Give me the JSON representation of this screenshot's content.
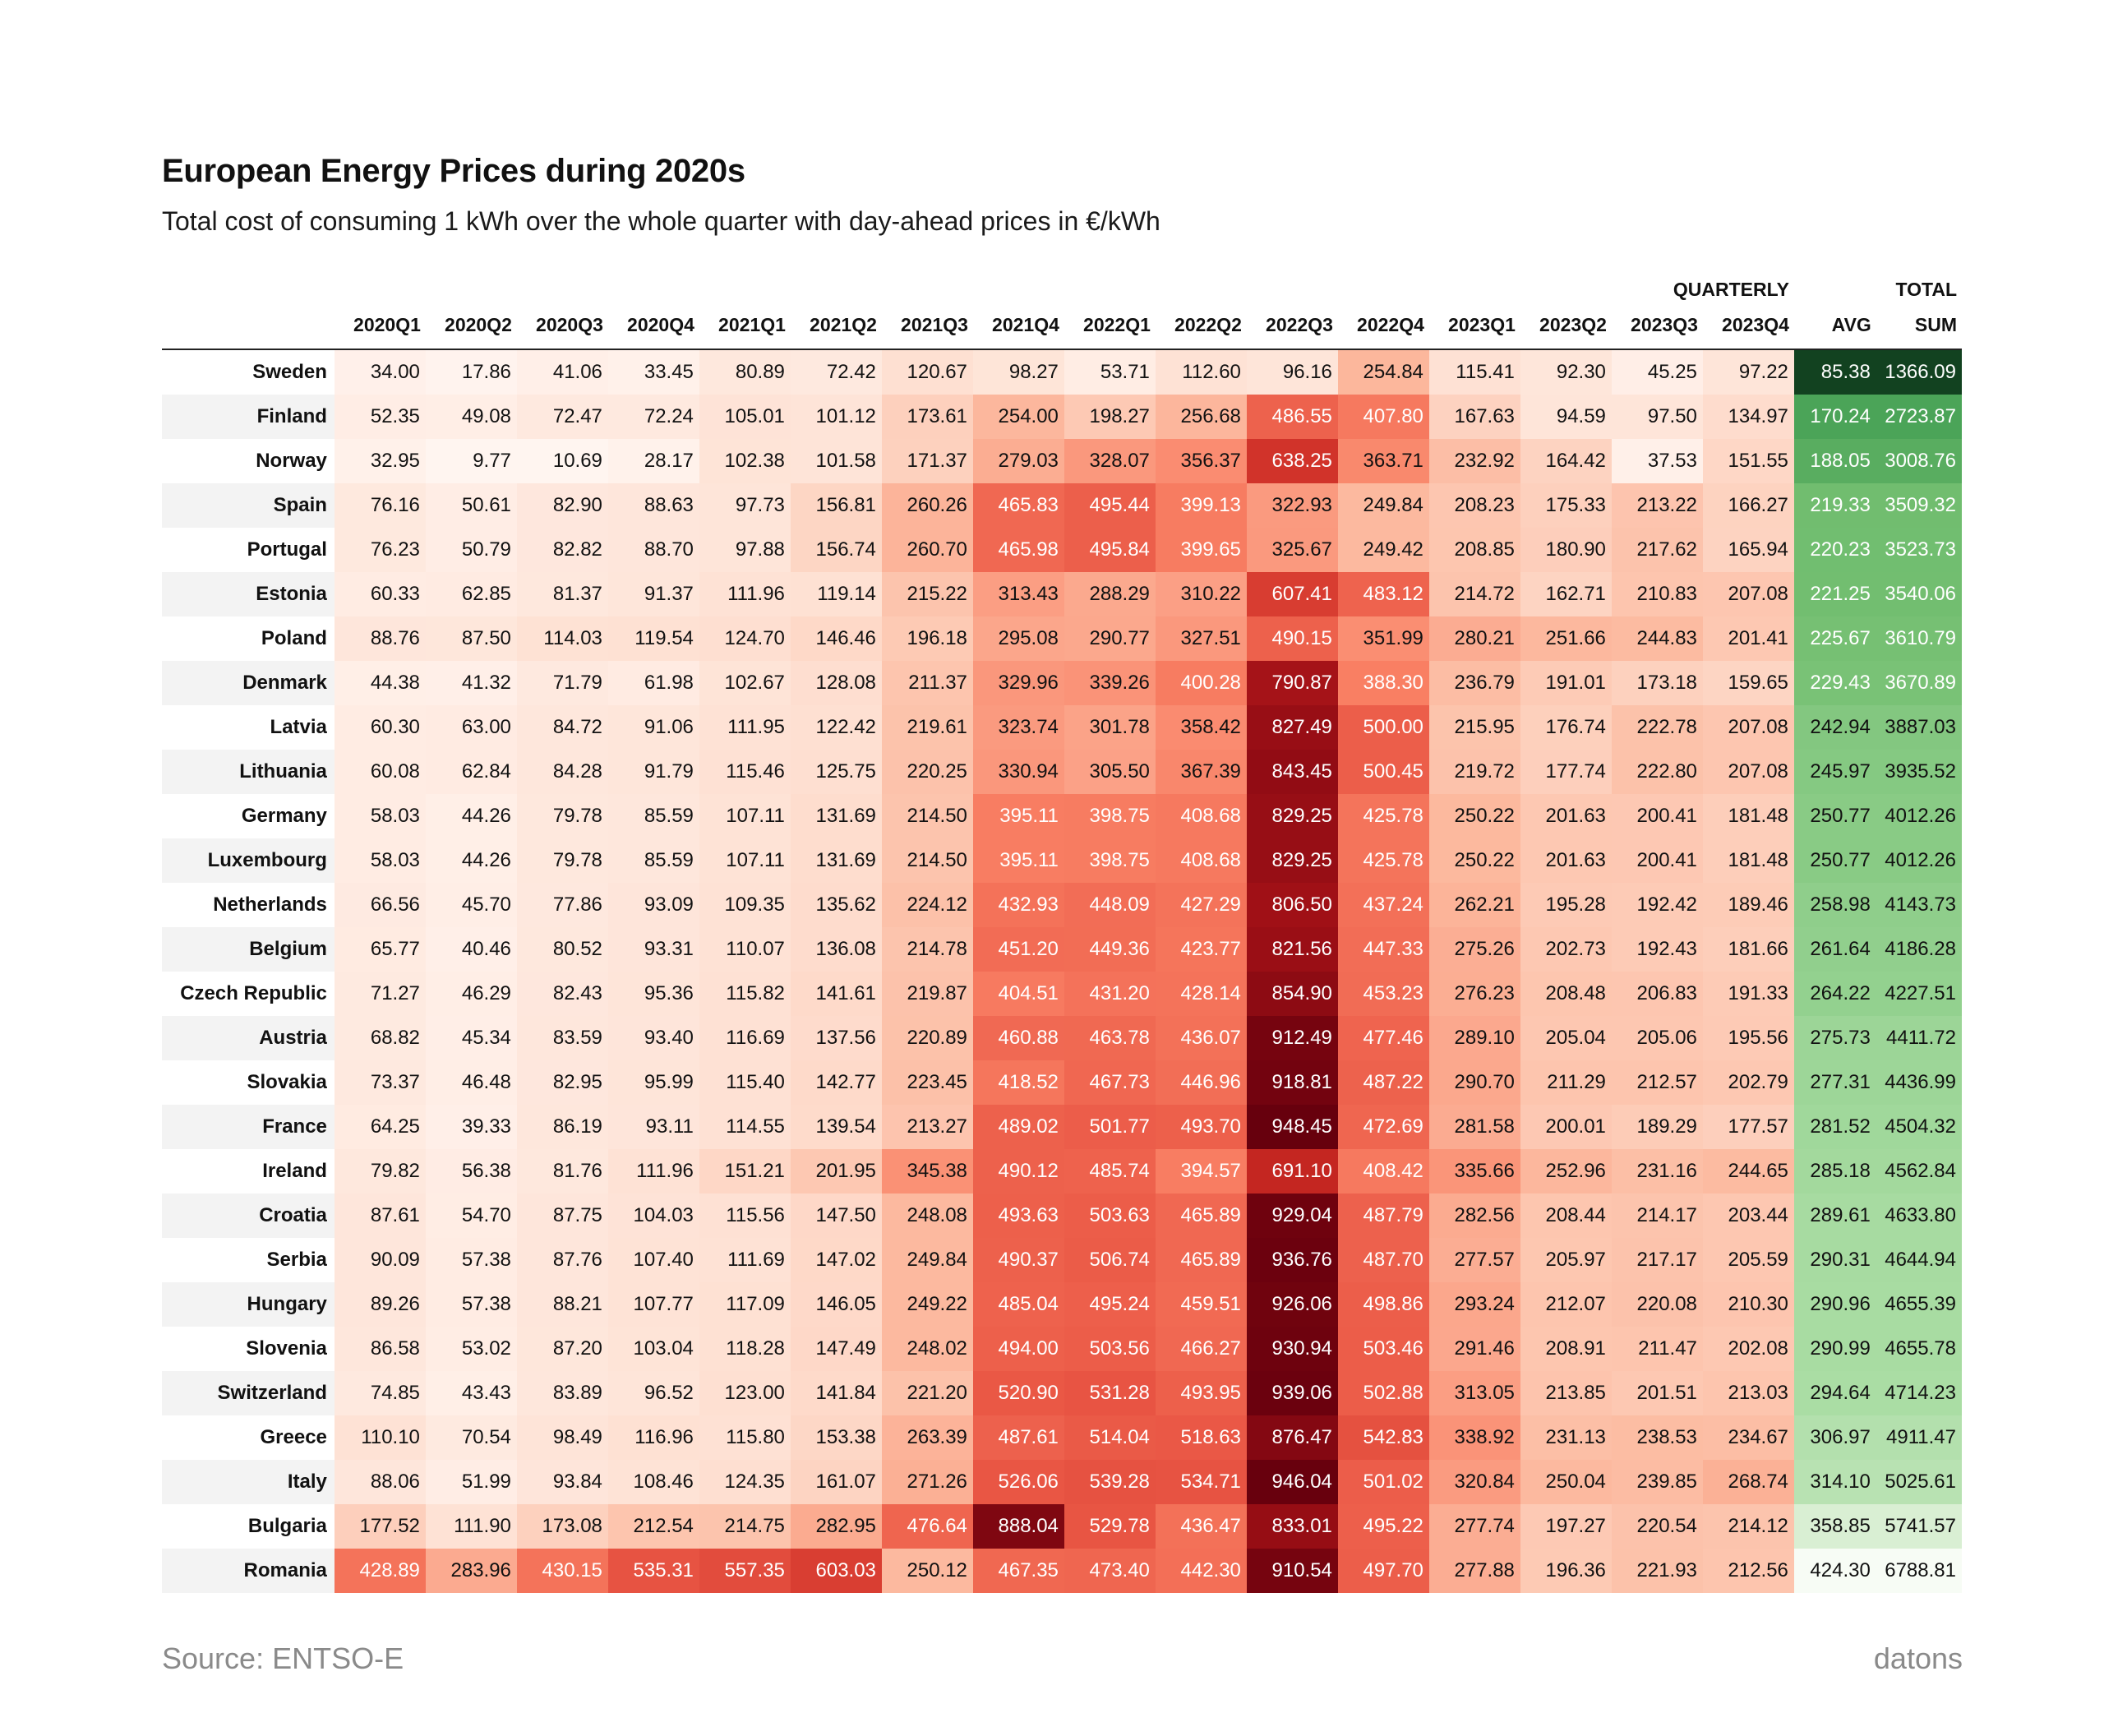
{
  "chart_data": {
    "type": "table",
    "title": "European Energy Prices during 2020s",
    "subtitle": "Total cost of consuming 1 kWh over the whole quarter with day-ahead prices in €/kWh",
    "group_headers": {
      "quarterly": "QUARTERLY",
      "total": "TOTAL"
    },
    "columns": [
      "2020Q1",
      "2020Q2",
      "2020Q3",
      "2020Q4",
      "2021Q1",
      "2021Q2",
      "2021Q3",
      "2021Q4",
      "2022Q1",
      "2022Q2",
      "2022Q3",
      "2022Q4",
      "2023Q1",
      "2023Q2",
      "2023Q3",
      "2023Q4"
    ],
    "avg_label": "AVG",
    "sum_label": "SUM",
    "price_scale": {
      "min": 9.77,
      "max": 948.45
    },
    "rows": [
      {
        "country": "Sweden",
        "values": [
          "34.00",
          "17.86",
          "41.06",
          "33.45",
          "80.89",
          "72.42",
          "120.67",
          "98.27",
          "53.71",
          "112.60",
          "96.16",
          "254.84",
          "115.41",
          "92.30",
          "45.25",
          "97.22"
        ],
        "avg": "85.38",
        "sum": "1366.09"
      },
      {
        "country": "Finland",
        "values": [
          "52.35",
          "49.08",
          "72.47",
          "72.24",
          "105.01",
          "101.12",
          "173.61",
          "254.00",
          "198.27",
          "256.68",
          "486.55",
          "407.80",
          "167.63",
          "94.59",
          "97.50",
          "134.97"
        ],
        "avg": "170.24",
        "sum": "2723.87"
      },
      {
        "country": "Norway",
        "values": [
          "32.95",
          "9.77",
          "10.69",
          "28.17",
          "102.38",
          "101.58",
          "171.37",
          "279.03",
          "328.07",
          "356.37",
          "638.25",
          "363.71",
          "232.92",
          "164.42",
          "37.53",
          "151.55"
        ],
        "avg": "188.05",
        "sum": "3008.76"
      },
      {
        "country": "Spain",
        "values": [
          "76.16",
          "50.61",
          "82.90",
          "88.63",
          "97.73",
          "156.81",
          "260.26",
          "465.83",
          "495.44",
          "399.13",
          "322.93",
          "249.84",
          "208.23",
          "175.33",
          "213.22",
          "166.27"
        ],
        "avg": "219.33",
        "sum": "3509.32"
      },
      {
        "country": "Portugal",
        "values": [
          "76.23",
          "50.79",
          "82.82",
          "88.70",
          "97.88",
          "156.74",
          "260.70",
          "465.98",
          "495.84",
          "399.65",
          "325.67",
          "249.42",
          "208.85",
          "180.90",
          "217.62",
          "165.94"
        ],
        "avg": "220.23",
        "sum": "3523.73"
      },
      {
        "country": "Estonia",
        "values": [
          "60.33",
          "62.85",
          "81.37",
          "91.37",
          "111.96",
          "119.14",
          "215.22",
          "313.43",
          "288.29",
          "310.22",
          "607.41",
          "483.12",
          "214.72",
          "162.71",
          "210.83",
          "207.08"
        ],
        "avg": "221.25",
        "sum": "3540.06"
      },
      {
        "country": "Poland",
        "values": [
          "88.76",
          "87.50",
          "114.03",
          "119.54",
          "124.70",
          "146.46",
          "196.18",
          "295.08",
          "290.77",
          "327.51",
          "490.15",
          "351.99",
          "280.21",
          "251.66",
          "244.83",
          "201.41"
        ],
        "avg": "225.67",
        "sum": "3610.79"
      },
      {
        "country": "Denmark",
        "values": [
          "44.38",
          "41.32",
          "71.79",
          "61.98",
          "102.67",
          "128.08",
          "211.37",
          "329.96",
          "339.26",
          "400.28",
          "790.87",
          "388.30",
          "236.79",
          "191.01",
          "173.18",
          "159.65"
        ],
        "avg": "229.43",
        "sum": "3670.89"
      },
      {
        "country": "Latvia",
        "values": [
          "60.30",
          "63.00",
          "84.72",
          "91.06",
          "111.95",
          "122.42",
          "219.61",
          "323.74",
          "301.78",
          "358.42",
          "827.49",
          "500.00",
          "215.95",
          "176.74",
          "222.78",
          "207.08"
        ],
        "avg": "242.94",
        "sum": "3887.03"
      },
      {
        "country": "Lithuania",
        "values": [
          "60.08",
          "62.84",
          "84.28",
          "91.79",
          "115.46",
          "125.75",
          "220.25",
          "330.94",
          "305.50",
          "367.39",
          "843.45",
          "500.45",
          "219.72",
          "177.74",
          "222.80",
          "207.08"
        ],
        "avg": "245.97",
        "sum": "3935.52"
      },
      {
        "country": "Germany",
        "values": [
          "58.03",
          "44.26",
          "79.78",
          "85.59",
          "107.11",
          "131.69",
          "214.50",
          "395.11",
          "398.75",
          "408.68",
          "829.25",
          "425.78",
          "250.22",
          "201.63",
          "200.41",
          "181.48"
        ],
        "avg": "250.77",
        "sum": "4012.26"
      },
      {
        "country": "Luxembourg",
        "values": [
          "58.03",
          "44.26",
          "79.78",
          "85.59",
          "107.11",
          "131.69",
          "214.50",
          "395.11",
          "398.75",
          "408.68",
          "829.25",
          "425.78",
          "250.22",
          "201.63",
          "200.41",
          "181.48"
        ],
        "avg": "250.77",
        "sum": "4012.26"
      },
      {
        "country": "Netherlands",
        "values": [
          "66.56",
          "45.70",
          "77.86",
          "93.09",
          "109.35",
          "135.62",
          "224.12",
          "432.93",
          "448.09",
          "427.29",
          "806.50",
          "437.24",
          "262.21",
          "195.28",
          "192.42",
          "189.46"
        ],
        "avg": "258.98",
        "sum": "4143.73"
      },
      {
        "country": "Belgium",
        "values": [
          "65.77",
          "40.46",
          "80.52",
          "93.31",
          "110.07",
          "136.08",
          "214.78",
          "451.20",
          "449.36",
          "423.77",
          "821.56",
          "447.33",
          "275.26",
          "202.73",
          "192.43",
          "181.66"
        ],
        "avg": "261.64",
        "sum": "4186.28"
      },
      {
        "country": "Czech Republic",
        "values": [
          "71.27",
          "46.29",
          "82.43",
          "95.36",
          "115.82",
          "141.61",
          "219.87",
          "404.51",
          "431.20",
          "428.14",
          "854.90",
          "453.23",
          "276.23",
          "208.48",
          "206.83",
          "191.33"
        ],
        "avg": "264.22",
        "sum": "4227.51"
      },
      {
        "country": "Austria",
        "values": [
          "68.82",
          "45.34",
          "83.59",
          "93.40",
          "116.69",
          "137.56",
          "220.89",
          "460.88",
          "463.78",
          "436.07",
          "912.49",
          "477.46",
          "289.10",
          "205.04",
          "205.06",
          "195.56"
        ],
        "avg": "275.73",
        "sum": "4411.72"
      },
      {
        "country": "Slovakia",
        "values": [
          "73.37",
          "46.48",
          "82.95",
          "95.99",
          "115.40",
          "142.77",
          "223.45",
          "418.52",
          "467.73",
          "446.96",
          "918.81",
          "487.22",
          "290.70",
          "211.29",
          "212.57",
          "202.79"
        ],
        "avg": "277.31",
        "sum": "4436.99"
      },
      {
        "country": "France",
        "values": [
          "64.25",
          "39.33",
          "86.19",
          "93.11",
          "114.55",
          "139.54",
          "213.27",
          "489.02",
          "501.77",
          "493.70",
          "948.45",
          "472.69",
          "281.58",
          "200.01",
          "189.29",
          "177.57"
        ],
        "avg": "281.52",
        "sum": "4504.32"
      },
      {
        "country": "Ireland",
        "values": [
          "79.82",
          "56.38",
          "81.76",
          "111.96",
          "151.21",
          "201.95",
          "345.38",
          "490.12",
          "485.74",
          "394.57",
          "691.10",
          "408.42",
          "335.66",
          "252.96",
          "231.16",
          "244.65"
        ],
        "avg": "285.18",
        "sum": "4562.84"
      },
      {
        "country": "Croatia",
        "values": [
          "87.61",
          "54.70",
          "87.75",
          "104.03",
          "115.56",
          "147.50",
          "248.08",
          "493.63",
          "503.63",
          "465.89",
          "929.04",
          "487.79",
          "282.56",
          "208.44",
          "214.17",
          "203.44"
        ],
        "avg": "289.61",
        "sum": "4633.80"
      },
      {
        "country": "Serbia",
        "values": [
          "90.09",
          "57.38",
          "87.76",
          "107.40",
          "111.69",
          "147.02",
          "249.84",
          "490.37",
          "506.74",
          "465.89",
          "936.76",
          "487.70",
          "277.57",
          "205.97",
          "217.17",
          "205.59"
        ],
        "avg": "290.31",
        "sum": "4644.94"
      },
      {
        "country": "Hungary",
        "values": [
          "89.26",
          "57.38",
          "88.21",
          "107.77",
          "117.09",
          "146.05",
          "249.22",
          "485.04",
          "495.24",
          "459.51",
          "926.06",
          "498.86",
          "293.24",
          "212.07",
          "220.08",
          "210.30"
        ],
        "avg": "290.96",
        "sum": "4655.39"
      },
      {
        "country": "Slovenia",
        "values": [
          "86.58",
          "53.02",
          "87.20",
          "103.04",
          "118.28",
          "147.49",
          "248.02",
          "494.00",
          "503.56",
          "466.27",
          "930.94",
          "503.46",
          "291.46",
          "208.91",
          "211.47",
          "202.08"
        ],
        "avg": "290.99",
        "sum": "4655.78"
      },
      {
        "country": "Switzerland",
        "values": [
          "74.85",
          "43.43",
          "83.89",
          "96.52",
          "123.00",
          "141.84",
          "221.20",
          "520.90",
          "531.28",
          "493.95",
          "939.06",
          "502.88",
          "313.05",
          "213.85",
          "201.51",
          "213.03"
        ],
        "avg": "294.64",
        "sum": "4714.23"
      },
      {
        "country": "Greece",
        "values": [
          "110.10",
          "70.54",
          "98.49",
          "116.96",
          "115.80",
          "153.38",
          "263.39",
          "487.61",
          "514.04",
          "518.63",
          "876.47",
          "542.83",
          "338.92",
          "231.13",
          "238.53",
          "234.67"
        ],
        "avg": "306.97",
        "sum": "4911.47"
      },
      {
        "country": "Italy",
        "values": [
          "88.06",
          "51.99",
          "93.84",
          "108.46",
          "124.35",
          "161.07",
          "271.26",
          "526.06",
          "539.28",
          "534.71",
          "946.04",
          "501.02",
          "320.84",
          "250.04",
          "239.85",
          "268.74"
        ],
        "avg": "314.10",
        "sum": "5025.61"
      },
      {
        "country": "Bulgaria",
        "values": [
          "177.52",
          "111.90",
          "173.08",
          "212.54",
          "214.75",
          "282.95",
          "476.64",
          "888.04",
          "529.78",
          "436.47",
          "833.01",
          "495.22",
          "277.74",
          "197.27",
          "220.54",
          "214.12"
        ],
        "avg": "358.85",
        "sum": "5741.57"
      },
      {
        "country": "Romania",
        "values": [
          "428.89",
          "283.96",
          "430.15",
          "535.31",
          "557.35",
          "603.03",
          "250.12",
          "467.35",
          "473.40",
          "442.30",
          "910.54",
          "497.70",
          "277.88",
          "196.36",
          "221.93",
          "212.56"
        ],
        "avg": "424.30",
        "sum": "6788.81"
      }
    ]
  },
  "footer": {
    "source": "Source: ENTSO-E",
    "brand": "datons"
  }
}
